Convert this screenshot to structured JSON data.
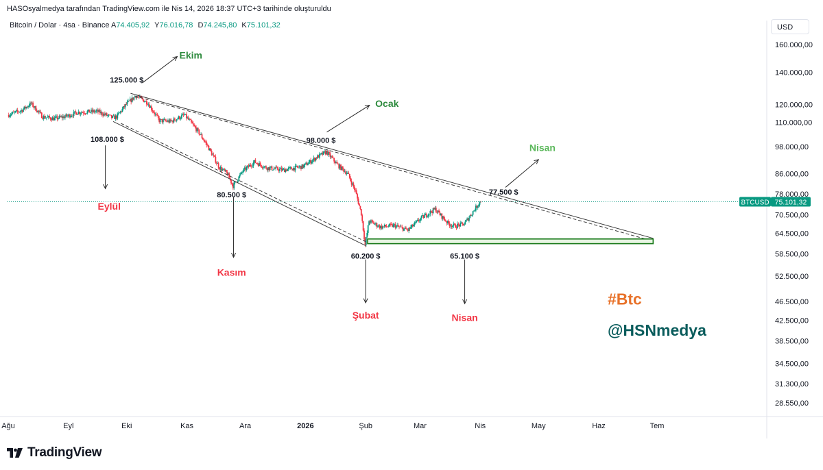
{
  "caption": "HASOsyalmedya tarafından TradingView.com ile Nis 14, 2026 18:37 UTC+3 tarihinde oluşturuldu",
  "symbol": {
    "name": "Bitcoin / Dolar · 4sa · Binance",
    "open_label": "A",
    "open": "74.405,92",
    "high_label": "Y",
    "high": "76.016,78",
    "low_label": "D",
    "low": "74.245,80",
    "close_label": "K",
    "close": "75.101,32"
  },
  "currency": "USD",
  "brand": {
    "name": "TradingView",
    "icon": "tradingview-logo-icon"
  },
  "colors": {
    "up": "#089981",
    "down": "#f23645",
    "green_label": "#2e8b3e",
    "red_label": "#f23645",
    "orange": "#e8722a",
    "teal": "#0a5c5c"
  },
  "chart_data": {
    "type": "candlestick",
    "title": "Bitcoin / Dolar · 4sa · Binance",
    "y_scale": "log",
    "y_ticks": [
      {
        "value": 160000,
        "label": "160.000,00"
      },
      {
        "value": 140000,
        "label": "140.000,00"
      },
      {
        "value": 120000,
        "label": "120.000,00"
      },
      {
        "value": 110000,
        "label": "110.000,00"
      },
      {
        "value": 98000,
        "label": "98.000,00"
      },
      {
        "value": 86000,
        "label": "86.000,00"
      },
      {
        "value": 78000,
        "label": "78.000,00"
      },
      {
        "value": 70500,
        "label": "70.500,00"
      },
      {
        "value": 64500,
        "label": "64.500,00"
      },
      {
        "value": 58500,
        "label": "58.500,00"
      },
      {
        "value": 52500,
        "label": "52.500,00"
      },
      {
        "value": 46500,
        "label": "46.500,00"
      },
      {
        "value": 42500,
        "label": "42.500,00"
      },
      {
        "value": 38500,
        "label": "38.500,00"
      },
      {
        "value": 34500,
        "label": "34.500,00"
      },
      {
        "value": 31300,
        "label": "31.300,00"
      },
      {
        "value": 28550,
        "label": "28.550,00"
      }
    ],
    "x_ticks": [
      {
        "date": "2025-08-15",
        "label": "Ağu"
      },
      {
        "date": "2025-09-15",
        "label": "Eyl"
      },
      {
        "date": "2025-10-15",
        "label": "Eki"
      },
      {
        "date": "2025-11-15",
        "label": "Kas"
      },
      {
        "date": "2025-12-15",
        "label": "Ara"
      },
      {
        "date": "2026-01-15",
        "label": "2026"
      },
      {
        "date": "2026-02-15",
        "label": "Şub"
      },
      {
        "date": "2026-03-15",
        "label": "Mar"
      },
      {
        "date": "2026-04-15",
        "label": "Nis"
      },
      {
        "date": "2026-05-15",
        "label": "May"
      },
      {
        "date": "2026-06-15",
        "label": "Haz"
      },
      {
        "date": "2026-07-15",
        "label": "Tem"
      }
    ],
    "price_path": [
      [
        "2025-08-15",
        114000
      ],
      [
        "2025-08-22",
        116500
      ],
      [
        "2025-08-27",
        120500
      ],
      [
        "2025-09-02",
        113000
      ],
      [
        "2025-09-08",
        112000
      ],
      [
        "2025-09-15",
        113500
      ],
      [
        "2025-09-20",
        115500
      ],
      [
        "2025-09-30",
        116000
      ],
      [
        "2025-10-08",
        112500
      ],
      [
        "2025-10-10",
        113000
      ],
      [
        "2025-10-15",
        120000
      ],
      [
        "2025-10-20",
        125000
      ],
      [
        "2025-10-26",
        121000
      ],
      [
        "2025-11-01",
        111000
      ],
      [
        "2025-11-07",
        110500
      ],
      [
        "2025-11-14",
        114000
      ],
      [
        "2025-11-18",
        109000
      ],
      [
        "2025-11-22",
        104000
      ],
      [
        "2025-11-26",
        98000
      ],
      [
        "2025-12-02",
        88500
      ],
      [
        "2025-12-06",
        86000
      ],
      [
        "2025-12-09",
        81000
      ],
      [
        "2025-12-14",
        87000
      ],
      [
        "2025-12-20",
        91000
      ],
      [
        "2025-12-26",
        88500
      ],
      [
        "2026-01-04",
        87500
      ],
      [
        "2026-01-14",
        89000
      ],
      [
        "2026-01-21",
        93000
      ],
      [
        "2026-01-26",
        95500
      ],
      [
        "2026-02-01",
        89500
      ],
      [
        "2026-02-06",
        86000
      ],
      [
        "2026-02-10",
        79000
      ],
      [
        "2026-02-13",
        71000
      ],
      [
        "2026-02-15",
        61000
      ],
      [
        "2026-02-17",
        68500
      ],
      [
        "2026-02-23",
        66500
      ],
      [
        "2026-03-02",
        67000
      ],
      [
        "2026-03-09",
        65500
      ],
      [
        "2026-03-16",
        69500
      ],
      [
        "2026-03-23",
        72500
      ],
      [
        "2026-03-30",
        67500
      ],
      [
        "2026-04-02",
        66800
      ],
      [
        "2026-04-07",
        67500
      ],
      [
        "2026-04-14",
        74000
      ],
      [
        "2026-04-15",
        75101
      ]
    ],
    "last_price": {
      "symbol": "BTCUSD",
      "value": 75101.32,
      "label": "75.101,32"
    },
    "trendlines": [
      {
        "from": [
          "2025-10-17",
          126500
        ],
        "to": [
          "2026-07-13",
          63000
        ],
        "style": "solid"
      },
      {
        "from": [
          "2025-10-19",
          125000
        ],
        "to": [
          "2026-07-12",
          62300
        ],
        "style": "dashed"
      },
      {
        "from": [
          "2025-10-08",
          110500
        ],
        "to": [
          "2026-02-15",
          60800
        ],
        "style": "solid"
      },
      {
        "from": [
          "2025-10-12",
          109500
        ],
        "to": [
          "2026-02-15",
          62000
        ],
        "style": "dashed"
      }
    ],
    "support_zone": {
      "from_date": "2026-02-16",
      "to_date": "2026-07-13",
      "top": 62800,
      "bottom": 61400
    },
    "price_annotations": [
      {
        "text": "125.000 $",
        "date": "2025-10-15",
        "price": 135000
      },
      {
        "text": "108.000 $",
        "date": "2025-10-05",
        "price": 101500
      },
      {
        "text": "80.500 $",
        "date": "2025-12-08",
        "price": 77800
      },
      {
        "text": "98.000 $",
        "date": "2026-01-23",
        "price": 101000
      },
      {
        "text": "77.500 $",
        "date": "2026-04-27",
        "price": 78800
      },
      {
        "text": "60.200 $",
        "date": "2026-02-15",
        "price": 57900
      },
      {
        "text": "65.100 $",
        "date": "2026-04-07",
        "price": 57900
      }
    ],
    "period_labels": [
      {
        "text": "Ekim",
        "date": "2025-11-17",
        "price": 152000,
        "color": "green"
      },
      {
        "text": "Eylül",
        "date": "2025-10-06",
        "price": 73500,
        "color": "red"
      },
      {
        "text": "Kasım",
        "date": "2025-12-08",
        "price": 53500,
        "color": "red"
      },
      {
        "text": "Ocak",
        "date": "2026-02-26",
        "price": 120500,
        "color": "green"
      },
      {
        "text": "Şubat",
        "date": "2026-02-15",
        "price": 43500,
        "color": "red"
      },
      {
        "text": "Nisan",
        "date": "2026-05-17",
        "price": 97500,
        "color": "green"
      },
      {
        "text": "Nisan",
        "date": "2026-04-07",
        "price": 43000,
        "color": "red"
      }
    ],
    "arrows": [
      {
        "from": [
          "2025-10-23",
          133000
        ],
        "to": [
          "2025-11-10",
          151000
        ]
      },
      {
        "from": [
          "2025-10-04",
          98500
        ],
        "to": [
          "2025-10-04",
          80000
        ]
      },
      {
        "from": [
          "2025-12-09",
          77000
        ],
        "to": [
          "2025-12-09",
          57500
        ]
      },
      {
        "from": [
          "2026-01-26",
          105000
        ],
        "to": [
          "2026-02-17",
          119500
        ]
      },
      {
        "from": [
          "2026-02-15",
          56900
        ],
        "to": [
          "2026-02-15",
          46200
        ]
      },
      {
        "from": [
          "2026-04-07",
          56900
        ],
        "to": [
          "2026-04-07",
          46000
        ]
      },
      {
        "from": [
          "2026-04-28",
          80500
        ],
        "to": [
          "2026-05-15",
          92000
        ]
      }
    ],
    "watermarks": [
      {
        "text": "#Btc",
        "date": "2026-06-20",
        "price": 47000,
        "color": "orange"
      },
      {
        "text": "@HSNmedya",
        "date": "2026-06-20",
        "price": 40500,
        "color": "teal"
      }
    ]
  }
}
